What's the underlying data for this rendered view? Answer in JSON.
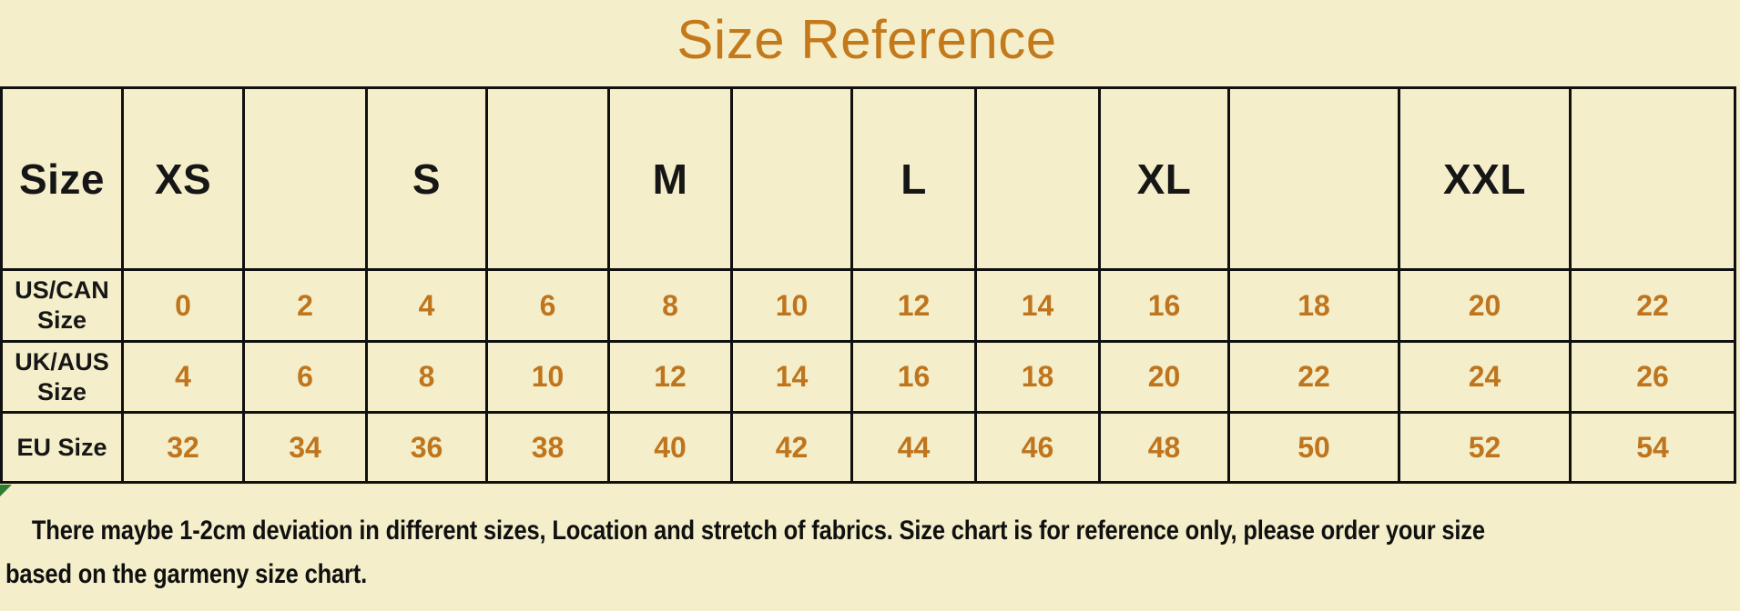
{
  "title": "Size Reference",
  "table": {
    "header": [
      "Size",
      "XS",
      "",
      "S",
      "",
      "M",
      "",
      "L",
      "",
      "XL",
      "",
      "XXL",
      ""
    ],
    "rows": [
      {
        "label": "US/CAN Size",
        "values": [
          "0",
          "2",
          "4",
          "6",
          "8",
          "10",
          "12",
          "14",
          "16",
          "18",
          "20",
          "22"
        ]
      },
      {
        "label": "UK/AUS Size",
        "values": [
          "4",
          "6",
          "8",
          "10",
          "12",
          "14",
          "16",
          "18",
          "20",
          "22",
          "24",
          "26"
        ]
      },
      {
        "label": "EU Size",
        "values": [
          "32",
          "34",
          "36",
          "38",
          "40",
          "42",
          "44",
          "46",
          "48",
          "50",
          "52",
          "54"
        ]
      }
    ]
  },
  "note": {
    "line1": "There maybe 1-2cm deviation in different sizes,  Location and stretch of fabrics. Size chart is for reference only, please order your size",
    "line2": "based on the garmeny size chart."
  },
  "chart_data": {
    "type": "table",
    "title": "Size Reference",
    "columns": [
      "Size",
      "XS",
      "",
      "S",
      "",
      "M",
      "",
      "L",
      "",
      "XL",
      "",
      "XXL",
      ""
    ],
    "rows": [
      [
        "US/CAN Size",
        0,
        2,
        4,
        6,
        8,
        10,
        12,
        14,
        16,
        18,
        20,
        22
      ],
      [
        "UK/AUS Size",
        4,
        6,
        8,
        10,
        12,
        14,
        16,
        18,
        20,
        22,
        24,
        26
      ],
      [
        "EU Size",
        32,
        34,
        36,
        38,
        40,
        42,
        44,
        46,
        48,
        50,
        52,
        54
      ]
    ]
  },
  "colors": {
    "background": "#f4efca",
    "title_orange": "#c4791b",
    "value_orange": "#bf751e",
    "border_black": "#101010",
    "header_text": "#161616",
    "note_text": "#101010",
    "artifact_green": "#2e7d32"
  }
}
